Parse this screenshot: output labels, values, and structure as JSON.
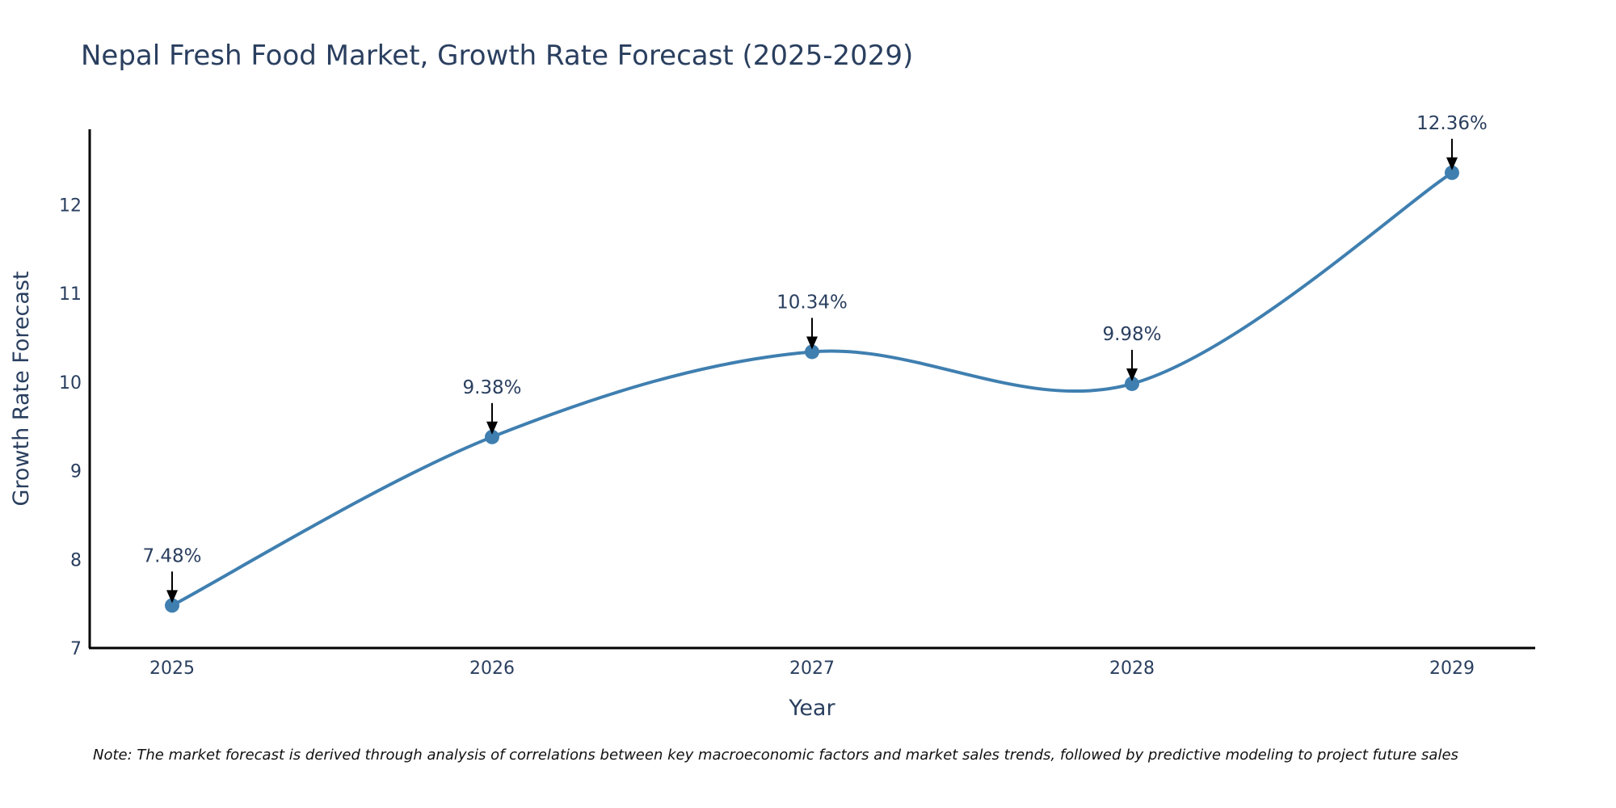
{
  "chart_data": {
    "type": "line",
    "title": "Nepal Fresh Food Market, Growth Rate Forecast (2025-2029)",
    "xlabel": "Year",
    "ylabel": "Growth Rate Forecast",
    "categories": [
      "2025",
      "2026",
      "2027",
      "2028",
      "2029"
    ],
    "values": [
      7.48,
      9.38,
      10.34,
      9.98,
      12.36
    ],
    "data_labels": [
      "7.48%",
      "9.38%",
      "10.34%",
      "9.98%",
      "12.36%"
    ],
    "y_ticks": [
      "7",
      "8",
      "9",
      "10",
      "11",
      "12"
    ],
    "ylim": [
      7,
      12.85
    ],
    "line_color": "#3f7fb0",
    "marker_color": "#3f7fb0",
    "grid": false,
    "line_shape": "spline"
  },
  "note": "Note: The market forecast is derived through analysis of correlations between key macroeconomic factors and market sales trends, followed by predictive modeling to project future sales"
}
